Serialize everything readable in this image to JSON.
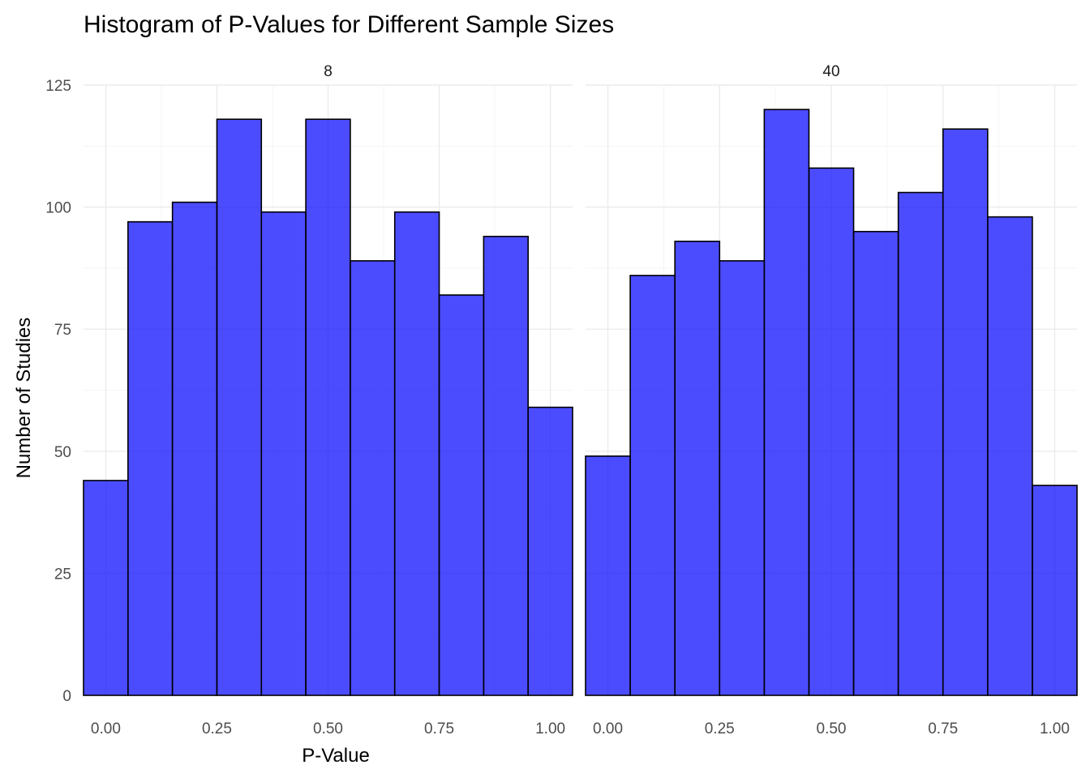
{
  "chart_data": {
    "type": "bar",
    "title": "Histogram of P-Values for Different Sample Sizes",
    "xlabel": "P-Value",
    "ylabel": "Number of Studies",
    "bar_color": "#0000FF",
    "bar_opacity": 0.7,
    "bar_edge_color": "#000000",
    "grid": true,
    "xlim": [
      -0.05,
      1.05
    ],
    "ylim": [
      0,
      125
    ],
    "x_ticks": [
      {
        "value": 0,
        "label": "0.00"
      },
      {
        "value": 0.25,
        "label": "0.25"
      },
      {
        "value": 0.5,
        "label": "0.50"
      },
      {
        "value": 0.75,
        "label": "0.75"
      },
      {
        "value": 1,
        "label": "1.00"
      }
    ],
    "y_ticks": [
      {
        "value": 0,
        "label": "0"
      },
      {
        "value": 25,
        "label": "25"
      },
      {
        "value": 50,
        "label": "50"
      },
      {
        "value": 75,
        "label": "75"
      },
      {
        "value": 100,
        "label": "100"
      },
      {
        "value": 125,
        "label": "125"
      }
    ],
    "bin_width": 0.1,
    "bin_centers": [
      0.0,
      0.1,
      0.2,
      0.3,
      0.4,
      0.5,
      0.6,
      0.7,
      0.8,
      0.9,
      1.0
    ],
    "panels": [
      {
        "label": "8",
        "values": [
          44,
          97,
          101,
          118,
          99,
          118,
          89,
          99,
          82,
          94,
          59
        ]
      },
      {
        "label": "40",
        "values": [
          49,
          86,
          93,
          89,
          120,
          108,
          95,
          103,
          116,
          98,
          43
        ]
      }
    ]
  }
}
